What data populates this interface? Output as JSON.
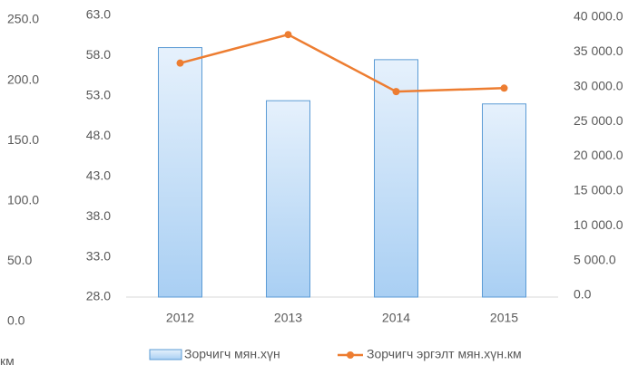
{
  "chart_data": {
    "type": "bar",
    "categories": [
      "2012",
      "2013",
      "2014",
      "2015"
    ],
    "series": [
      {
        "name": "Зорчигч мян.хүн",
        "type": "bar",
        "color": "#5b9bd5",
        "values": [
          59.0,
          52.4,
          57.5,
          52.0
        ]
      },
      {
        "name": "Зорчигч эргэлт мян.хүн.км",
        "type": "line",
        "axis": "y2",
        "color": "#ed7d31",
        "values": [
          33400,
          37500,
          29300,
          29800
        ]
      }
    ],
    "ylim": [
      28,
      63
    ],
    "yticks": [
      {
        "value": 28,
        "label": "28.0"
      },
      {
        "value": 33,
        "label": "33.0"
      },
      {
        "value": 38,
        "label": "38.0"
      },
      {
        "value": 43,
        "label": "43.0"
      },
      {
        "value": 48,
        "label": "48.0"
      },
      {
        "value": 53,
        "label": "53.0"
      },
      {
        "value": 58,
        "label": "58.0"
      },
      {
        "value": 63,
        "label": "63.0"
      }
    ],
    "y2lim": [
      0,
      40000
    ],
    "y2ticks": [
      {
        "value": 0,
        "label": "0.0"
      },
      {
        "value": 5000,
        "label": "5 000.0"
      },
      {
        "value": 10000,
        "label": "10 000.0"
      },
      {
        "value": 15000,
        "label": "15 000.0"
      },
      {
        "value": 20000,
        "label": "20 000.0"
      },
      {
        "value": 25000,
        "label": "25 000.0"
      },
      {
        "value": 30000,
        "label": "30 000.0"
      },
      {
        "value": 35000,
        "label": "35 000.0"
      },
      {
        "value": 40000,
        "label": "40 000.0"
      }
    ],
    "y3lim": [
      0,
      250
    ],
    "y3ticks": [
      {
        "value": 0,
        "label": "0.0"
      },
      {
        "value": 50,
        "label": "50.0"
      },
      {
        "value": 100,
        "label": "100.0"
      },
      {
        "value": 150,
        "label": "150.0"
      },
      {
        "value": 200,
        "label": "200.0"
      },
      {
        "value": 250,
        "label": "250.0"
      }
    ],
    "y3_label": "км",
    "legend": "bottom"
  }
}
